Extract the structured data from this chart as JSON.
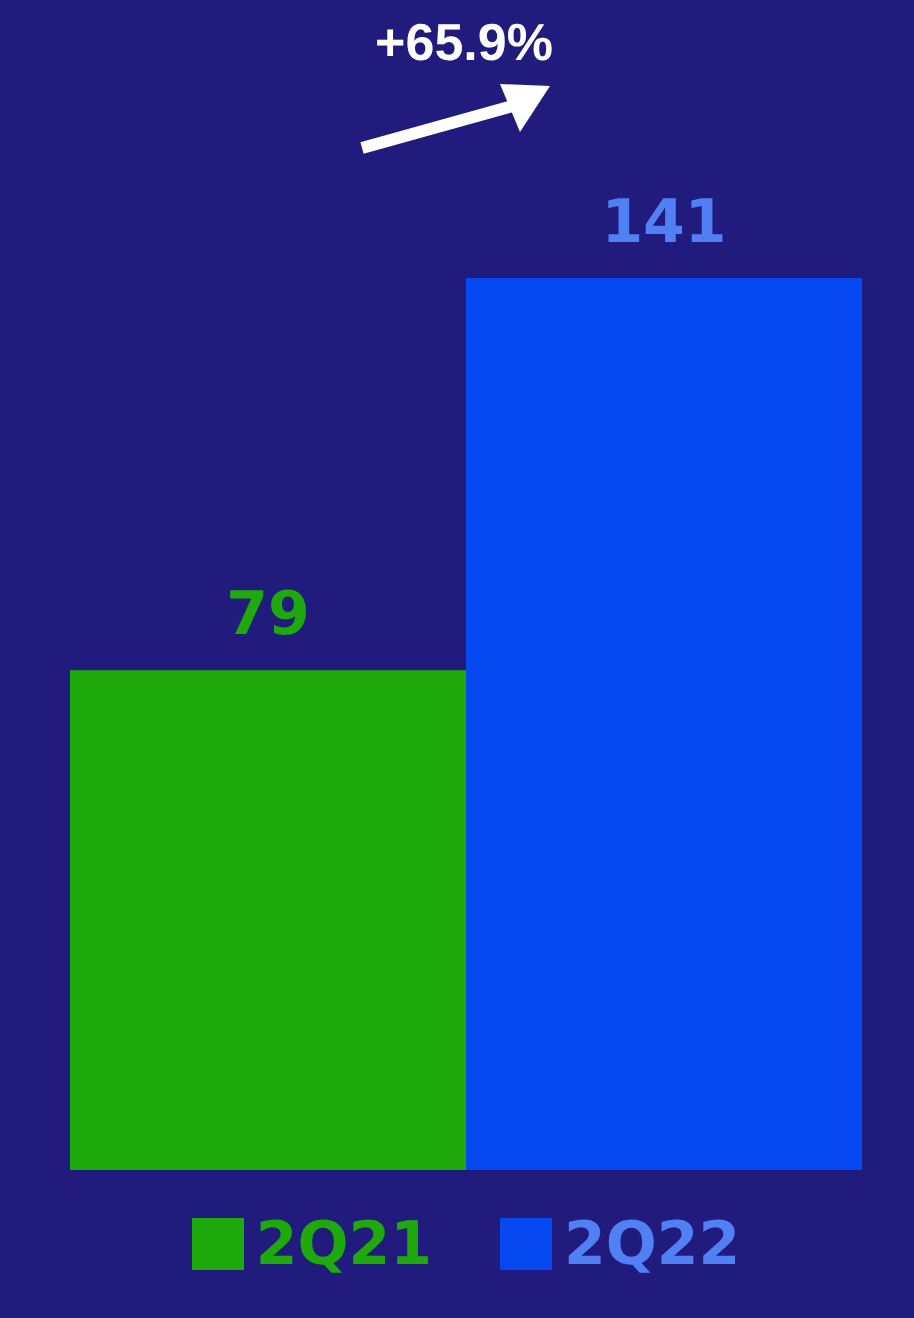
{
  "chart_data": {
    "type": "bar",
    "categories": [
      null
    ],
    "series": [
      {
        "name": "2Q21",
        "color": "#1faa0b",
        "values": [
          79
        ]
      },
      {
        "name": "2Q22",
        "color": "#0649f0",
        "values": [
          141
        ]
      }
    ],
    "data_labels": true,
    "legend": "bottom",
    "grid": false,
    "annotations": [
      "+65.9%"
    ]
  }
}
